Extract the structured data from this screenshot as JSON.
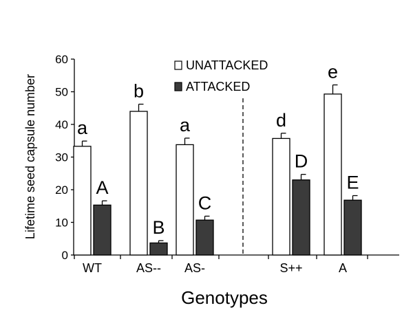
{
  "chart_data": {
    "type": "bar",
    "title": "",
    "xlabel": "Genotypes",
    "ylabel": "Lifetime seed capsule number",
    "ylim": [
      0,
      60
    ],
    "yticks": [
      0,
      10,
      20,
      30,
      40,
      50,
      60
    ],
    "grid": false,
    "legend_position": "top-center",
    "categories": [
      "WT",
      "AS--",
      "AS-",
      "S++",
      "A"
    ],
    "group_break_after": "AS-",
    "series": [
      {
        "name": "UNATTACKED",
        "color": "#ffffff",
        "values": [
          33.3,
          44.0,
          33.8,
          35.7,
          49.3
        ],
        "errors": [
          1.6,
          2.2,
          2.0,
          1.6,
          2.8
        ],
        "letters": [
          "a",
          "b",
          "a",
          "d",
          "e"
        ]
      },
      {
        "name": "ATTACKED",
        "color": "#3b3b3b",
        "values": [
          15.3,
          3.7,
          10.7,
          23.0,
          16.8
        ],
        "errors": [
          1.3,
          0.7,
          1.2,
          1.7,
          1.4
        ],
        "letters": [
          "A",
          "B",
          "C",
          "D",
          "E"
        ]
      }
    ]
  }
}
